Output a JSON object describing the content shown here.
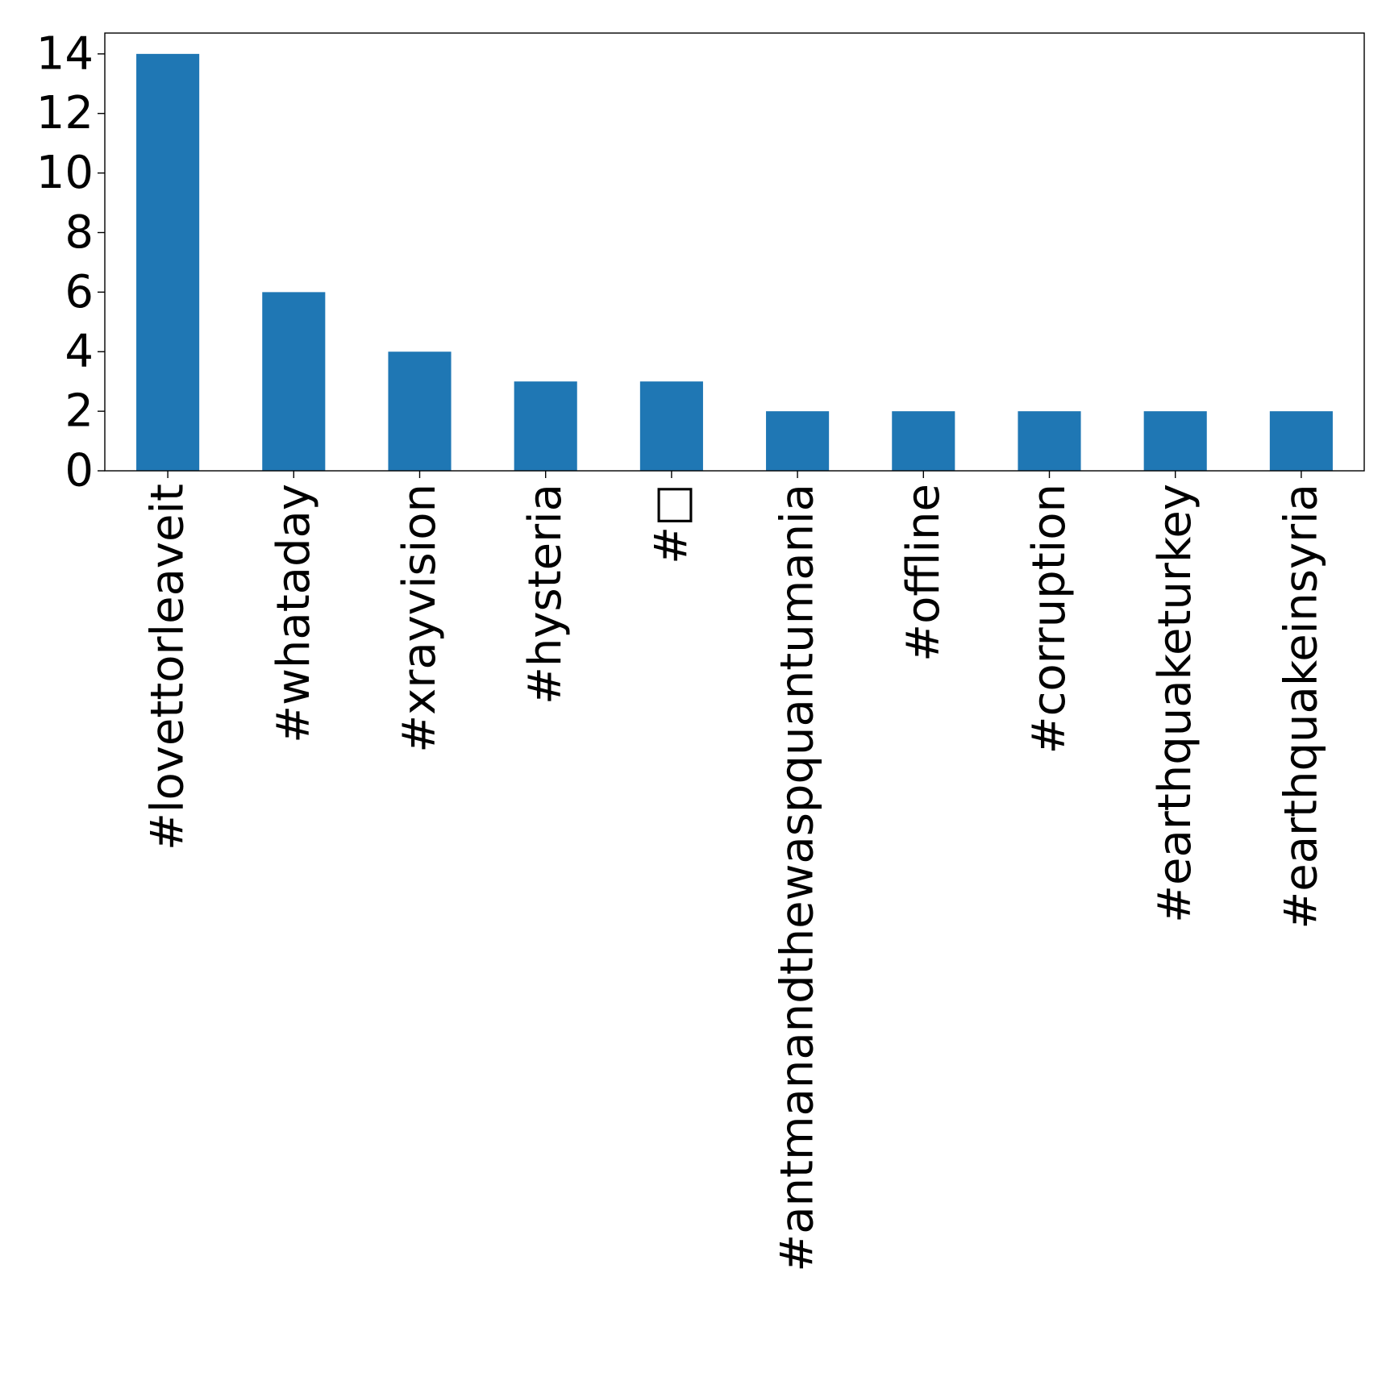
{
  "chart_data": {
    "type": "bar",
    "title": "",
    "xlabel": "",
    "ylabel": "",
    "categories": [
      "#lovettorleaveit",
      "#whataday",
      "#xrayvision",
      "#hysteria",
      "#□",
      "#antmanandthewaspquantumania",
      "#offline",
      "#corruption",
      "#earthquaketurkey",
      "#earthquakeinsyria"
    ],
    "values": [
      14,
      6,
      4,
      3,
      3,
      2,
      2,
      2,
      2,
      2
    ],
    "ylim": [
      0,
      14.7
    ],
    "yticks": [
      0,
      2,
      4,
      6,
      8,
      10,
      12,
      14
    ],
    "grid": false,
    "legend": "none",
    "bar_color": "#1f77b4",
    "axis_color": "#000000",
    "tick_label_rotation": 90
  }
}
